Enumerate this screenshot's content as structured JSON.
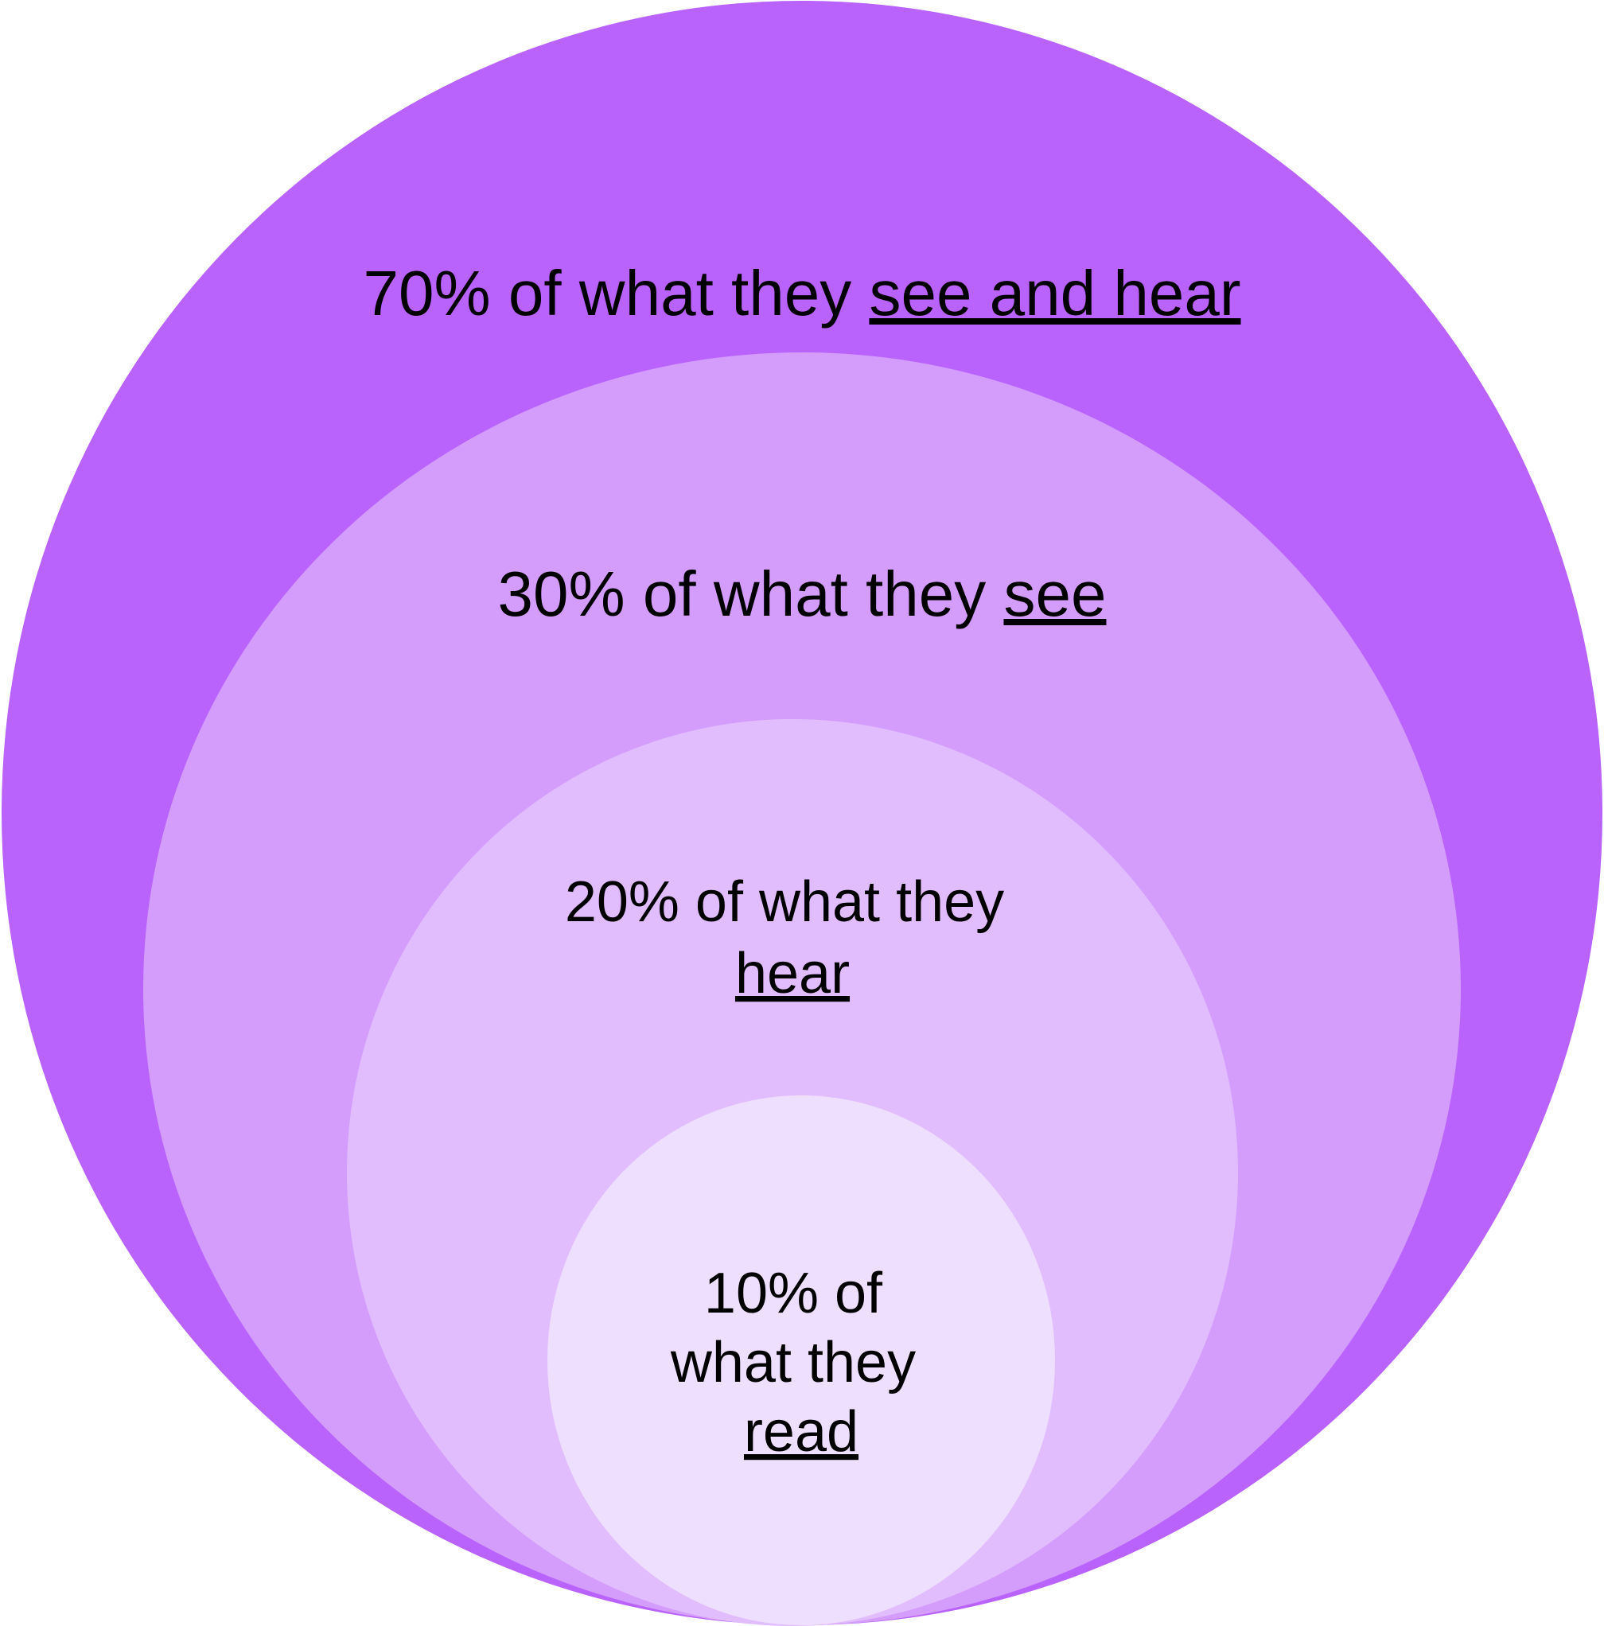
{
  "rings": [
    {
      "id": "outer",
      "color": "#b962fc",
      "label": {
        "prefix": "70% of what they ",
        "emphasis": "see and hear"
      }
    },
    {
      "id": "second",
      "color": "#d49dfc",
      "label": {
        "prefix": "30% of what they ",
        "emphasis": "see"
      }
    },
    {
      "id": "third",
      "color": "#e2bdfd",
      "label": {
        "line1": "20% of what they",
        "emphasis": "hear"
      }
    },
    {
      "id": "inner",
      "color": "#efdffe",
      "label": {
        "line1": "10% of",
        "line2": "what they",
        "emphasis": "read"
      }
    }
  ]
}
